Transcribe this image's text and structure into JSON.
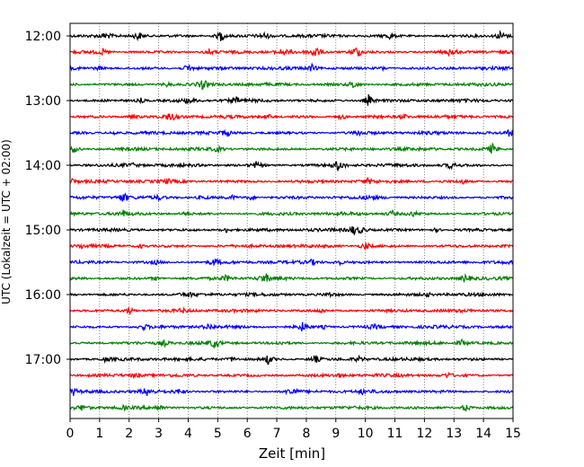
{
  "chart_data": {
    "type": "line",
    "subtype": "helicorder-seismogram",
    "xlabel": "Zeit  [min]",
    "ylabel": "UTC (Lokalzeit = UTC + 02:00)",
    "xlim": [
      0,
      15
    ],
    "x_ticks": [
      "0",
      "1",
      "2",
      "3",
      "4",
      "5",
      "6",
      "7",
      "8",
      "9",
      "10",
      "11",
      "12",
      "13",
      "14",
      "15"
    ],
    "y_ticks": [
      "12:00",
      "13:00",
      "14:00",
      "15:00",
      "16:00",
      "17:00"
    ],
    "traces_per_hour": 4,
    "grid": {
      "x": true,
      "style": "dotted"
    },
    "colors_cycle": [
      "#000000",
      "#ff0000",
      "#0000ff",
      "#008000"
    ],
    "series": [
      {
        "start": "12:00",
        "color": "#000000",
        "events": [
          [
            1.2,
            0.5
          ],
          [
            2.3,
            0.8
          ],
          [
            5.1,
            1.0
          ],
          [
            6.6,
            0.5
          ],
          [
            10.8,
            0.5
          ],
          [
            14.6,
            0.9
          ]
        ]
      },
      {
        "start": "12:15",
        "color": "#ff0000",
        "events": [
          [
            1.1,
            0.4
          ],
          [
            4.7,
            0.5
          ],
          [
            7.2,
            0.6
          ],
          [
            8.3,
            1.0
          ],
          [
            9.7,
            1.1
          ],
          [
            12.9,
            0.8
          ]
        ]
      },
      {
        "start": "12:30",
        "color": "#0000ff",
        "events": [
          [
            1.0,
            0.3
          ],
          [
            4.0,
            0.7
          ],
          [
            8.2,
            0.6
          ],
          [
            10.6,
            0.3
          ]
        ]
      },
      {
        "start": "12:45",
        "color": "#008000",
        "events": [
          [
            3.3,
            0.4
          ],
          [
            4.5,
            0.8
          ],
          [
            9.6,
            0.7
          ]
        ]
      },
      {
        "start": "13:00",
        "color": "#000000",
        "events": [
          [
            2.4,
            0.4
          ],
          [
            4.0,
            0.4
          ],
          [
            5.6,
            0.6
          ],
          [
            10.1,
            1.0
          ]
        ]
      },
      {
        "start": "13:15",
        "color": "#ff0000",
        "events": [
          [
            2.1,
            0.5
          ],
          [
            3.4,
            0.8
          ],
          [
            6.7,
            0.4
          ],
          [
            9.2,
            0.5
          ],
          [
            11.3,
            0.4
          ]
        ]
      },
      {
        "start": "13:30",
        "color": "#0000ff",
        "events": [
          [
            1.5,
            0.3
          ],
          [
            5.3,
            0.5
          ],
          [
            9.8,
            0.4
          ],
          [
            14.9,
            0.6
          ]
        ]
      },
      {
        "start": "13:45",
        "color": "#008000",
        "events": [
          [
            0.1,
            0.7
          ],
          [
            5.0,
            0.4
          ],
          [
            14.3,
            0.9
          ]
        ]
      },
      {
        "start": "14:00",
        "color": "#000000",
        "events": [
          [
            2.1,
            0.3
          ],
          [
            6.3,
            0.5
          ],
          [
            9.1,
            1.0
          ],
          [
            12.9,
            0.6
          ]
        ]
      },
      {
        "start": "14:15",
        "color": "#ff0000",
        "events": [
          [
            0.1,
            0.5
          ],
          [
            3.3,
            0.3
          ],
          [
            10.1,
            0.4
          ],
          [
            13.3,
            0.3
          ]
        ]
      },
      {
        "start": "14:30",
        "color": "#0000ff",
        "events": [
          [
            1.8,
            0.9
          ],
          [
            3.0,
            0.3
          ],
          [
            4.5,
            0.3
          ],
          [
            5.5,
            0.3
          ],
          [
            6.1,
            0.4
          ],
          [
            10.2,
            0.3
          ]
        ]
      },
      {
        "start": "14:45",
        "color": "#008000",
        "events": [
          [
            1.8,
            0.5
          ],
          [
            3.9,
            0.3
          ],
          [
            10.9,
            0.5
          ],
          [
            11.6,
            0.4
          ]
        ]
      },
      {
        "start": "15:00",
        "color": "#000000",
        "events": [
          [
            5.3,
            0.4
          ],
          [
            9.6,
            0.8
          ],
          [
            9.9,
            0.5
          ],
          [
            12.4,
            0.3
          ]
        ]
      },
      {
        "start": "15:15",
        "color": "#ff0000",
        "events": [
          [
            0.4,
            0.3
          ],
          [
            2.4,
            0.3
          ],
          [
            10.0,
            0.6
          ]
        ]
      },
      {
        "start": "15:30",
        "color": "#0000ff",
        "events": [
          [
            2.9,
            0.3
          ],
          [
            4.9,
            0.6
          ],
          [
            8.2,
            0.4
          ],
          [
            9.1,
            0.4
          ]
        ]
      },
      {
        "start": "15:45",
        "color": "#008000",
        "events": [
          [
            2.9,
            0.3
          ],
          [
            5.3,
            0.5
          ],
          [
            6.6,
            0.9
          ],
          [
            13.4,
            0.7
          ]
        ]
      },
      {
        "start": "16:00",
        "color": "#000000",
        "events": [
          [
            4.0,
            0.4
          ],
          [
            8.8,
            0.3
          ],
          [
            12.1,
            0.3
          ]
        ]
      },
      {
        "start": "16:15",
        "color": "#ff0000",
        "events": [
          [
            2.0,
            0.6
          ],
          [
            3.8,
            0.3
          ],
          [
            8.5,
            0.3
          ]
        ]
      },
      {
        "start": "16:30",
        "color": "#0000ff",
        "events": [
          [
            2.5,
            0.4
          ],
          [
            4.7,
            0.5
          ],
          [
            7.9,
            0.9
          ],
          [
            8.6,
            0.3
          ],
          [
            10.3,
            0.3
          ]
        ]
      },
      {
        "start": "16:45",
        "color": "#008000",
        "events": [
          [
            3.2,
            0.4
          ],
          [
            4.9,
            0.8
          ],
          [
            7.1,
            0.3
          ],
          [
            13.3,
            0.6
          ]
        ]
      },
      {
        "start": "17:00",
        "color": "#000000",
        "events": [
          [
            1.2,
            0.3
          ],
          [
            5.5,
            0.4
          ],
          [
            6.7,
            0.8
          ],
          [
            8.3,
            0.7
          ],
          [
            9.8,
            0.4
          ]
        ]
      },
      {
        "start": "17:15",
        "color": "#ff0000",
        "events": [
          [
            2.2,
            0.3
          ],
          [
            9.1,
            0.3
          ],
          [
            12.8,
            0.4
          ]
        ]
      },
      {
        "start": "17:30",
        "color": "#0000ff",
        "events": [
          [
            0.1,
            0.6
          ],
          [
            2.6,
            0.7
          ],
          [
            3.7,
            0.4
          ],
          [
            7.5,
            0.8
          ],
          [
            9.9,
            0.3
          ]
        ]
      },
      {
        "start": "17:45",
        "color": "#008000",
        "events": [
          [
            0.4,
            0.4
          ],
          [
            1.8,
            0.3
          ],
          [
            3.0,
            0.5
          ],
          [
            13.4,
            0.7
          ]
        ]
      }
    ]
  }
}
